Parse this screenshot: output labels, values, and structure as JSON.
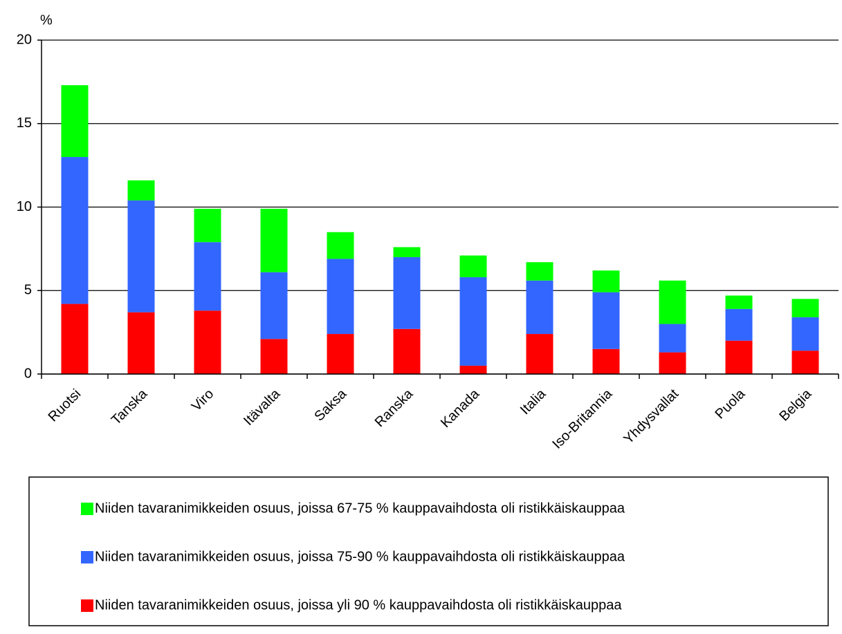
{
  "chart_data": {
    "type": "stacked_bar",
    "y_label": "%",
    "categories": [
      "Ruotsi",
      "Tanska",
      "Viro",
      "Itävalta",
      "Saksa",
      "Ranska",
      "Kanada",
      "Italia",
      "Iso-Britannia",
      "Yhdysvallat",
      "Puola",
      "Belgia"
    ],
    "series": [
      {
        "name": "Niiden tavaranimikkeiden osuus, joissa yli 90 % kauppavaihdosta oli ristikkäiskauppaa",
        "color": "#ff0000",
        "values": [
          4.2,
          3.7,
          3.8,
          2.1,
          2.4,
          2.7,
          0.5,
          2.4,
          1.5,
          1.3,
          2.0,
          1.4
        ]
      },
      {
        "name": "Niiden tavaranimikkeiden osuus, joissa 75-90 % kauppavaihdosta oli ristikkäiskauppaa",
        "color": "#3366ff",
        "values": [
          8.8,
          6.7,
          4.1,
          4.0,
          4.5,
          4.3,
          5.3,
          3.2,
          3.4,
          1.7,
          1.9,
          2.0
        ]
      },
      {
        "name": "Niiden tavaranimikkeiden osuus, joissa 67-75 % kauppavaihdosta oli ristikkäiskauppaa",
        "color": "#00ff00",
        "values": [
          4.3,
          1.2,
          2.0,
          3.8,
          1.6,
          0.6,
          1.3,
          1.1,
          1.3,
          2.6,
          0.8,
          1.1
        ]
      }
    ],
    "ylim": [
      0,
      20
    ],
    "yticks": [
      0,
      5,
      10,
      15,
      20
    ],
    "grid": true
  }
}
